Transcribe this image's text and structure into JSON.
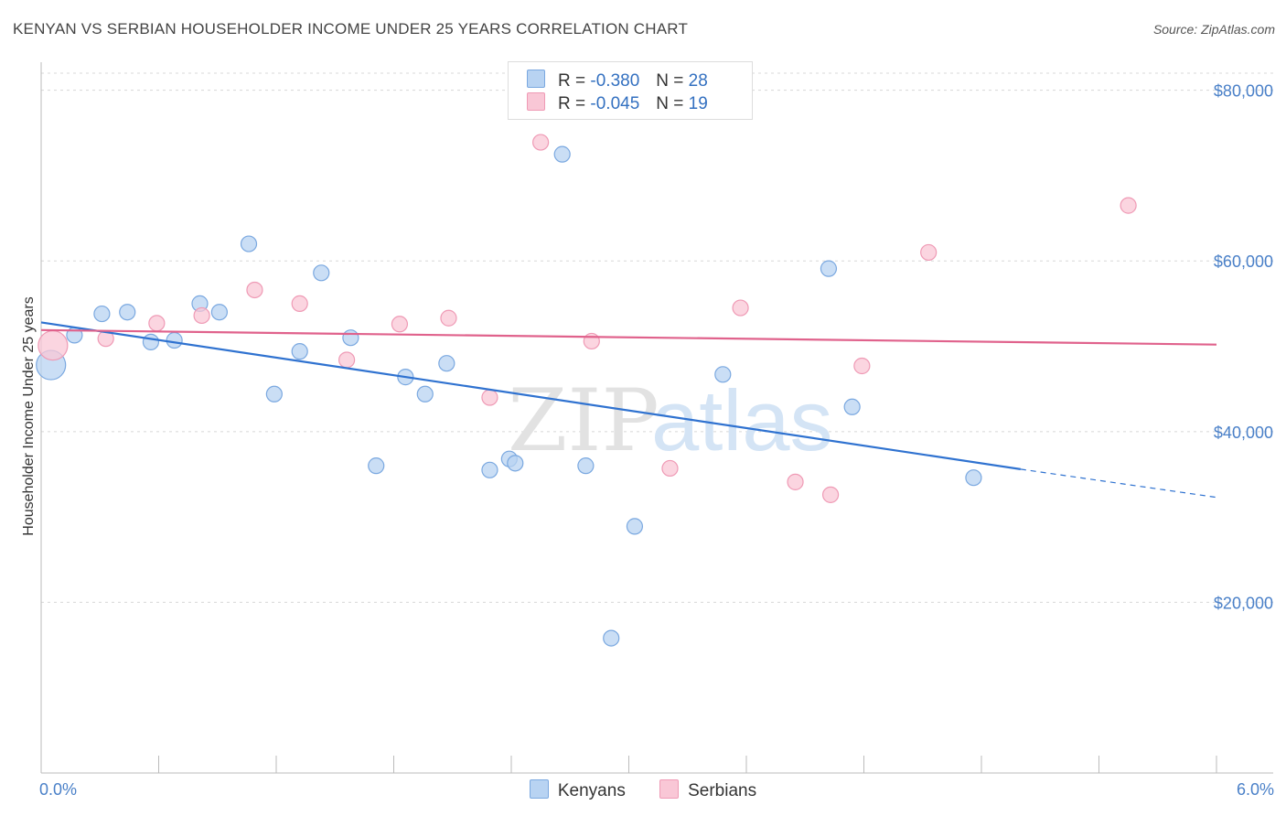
{
  "title": "KENYAN VS SERBIAN HOUSEHOLDER INCOME UNDER 25 YEARS CORRELATION CHART",
  "source": "Source: ZipAtlas.com",
  "watermark": {
    "zip": "ZIP",
    "atlas": "atlas"
  },
  "legend": {
    "kenyans": {
      "r_label": "R =",
      "r_value": "-0.380",
      "n_label": "N =",
      "n_value": "28"
    },
    "serbians": {
      "r_label": "R =",
      "r_value": "-0.045",
      "n_label": "N =",
      "n_value": "19"
    }
  },
  "colors": {
    "kenyans_fill": "#b8d3f2",
    "kenyans_stroke": "#7aa8e0",
    "kenyans_line": "#2f72d0",
    "serbians_fill": "#f9c7d6",
    "serbians_stroke": "#ef9ab5",
    "serbians_line": "#e0628c",
    "tick_text": "#4a80c8",
    "grid": "#d8d8d8"
  },
  "chart_data": {
    "type": "scatter",
    "title": "KENYAN VS SERBIAN HOUSEHOLDER INCOME UNDER 25 YEARS CORRELATION CHART",
    "xlabel": "",
    "ylabel": "Householder Income Under 25 years",
    "xlim": [
      0,
      6
    ],
    "ylim": [
      0,
      82000
    ],
    "x_tick_labels": [
      "0.0%",
      "6.0%"
    ],
    "y_ticks": [
      20000,
      40000,
      60000,
      80000
    ],
    "y_tick_labels": [
      "$20,000",
      "$40,000",
      "$60,000",
      "$80,000"
    ],
    "grid": true,
    "legend_position": "top-center",
    "series": [
      {
        "name": "Kenyans",
        "points": [
          {
            "x": 0.05,
            "y": 47800,
            "big": true
          },
          {
            "x": 0.17,
            "y": 51300
          },
          {
            "x": 0.31,
            "y": 53800
          },
          {
            "x": 0.44,
            "y": 54000
          },
          {
            "x": 0.56,
            "y": 50500
          },
          {
            "x": 0.68,
            "y": 50700
          },
          {
            "x": 0.81,
            "y": 55000
          },
          {
            "x": 0.91,
            "y": 54000
          },
          {
            "x": 1.06,
            "y": 62000
          },
          {
            "x": 1.19,
            "y": 44400
          },
          {
            "x": 1.32,
            "y": 49400
          },
          {
            "x": 1.43,
            "y": 58600
          },
          {
            "x": 1.58,
            "y": 51000
          },
          {
            "x": 1.71,
            "y": 36000
          },
          {
            "x": 1.86,
            "y": 46400
          },
          {
            "x": 1.96,
            "y": 44400
          },
          {
            "x": 2.07,
            "y": 48000
          },
          {
            "x": 2.29,
            "y": 35500
          },
          {
            "x": 2.39,
            "y": 36800
          },
          {
            "x": 2.42,
            "y": 36300
          },
          {
            "x": 2.66,
            "y": 72500
          },
          {
            "x": 2.78,
            "y": 36000
          },
          {
            "x": 2.91,
            "y": 15800
          },
          {
            "x": 3.03,
            "y": 28900
          },
          {
            "x": 3.48,
            "y": 46700
          },
          {
            "x": 4.02,
            "y": 59100
          },
          {
            "x": 4.14,
            "y": 42900
          },
          {
            "x": 4.76,
            "y": 34600
          }
        ],
        "trend": {
          "x0": 0,
          "y0": 52800,
          "x1": 5.0,
          "y1": 35600,
          "dash_x1": 6.0,
          "dash_y1": 32300
        }
      },
      {
        "name": "Serbians",
        "points": [
          {
            "x": 0.06,
            "y": 50100,
            "big": true
          },
          {
            "x": 0.33,
            "y": 50900
          },
          {
            "x": 0.59,
            "y": 52700
          },
          {
            "x": 0.82,
            "y": 53600
          },
          {
            "x": 1.09,
            "y": 56600
          },
          {
            "x": 1.32,
            "y": 55000
          },
          {
            "x": 1.56,
            "y": 48400
          },
          {
            "x": 1.83,
            "y": 52600
          },
          {
            "x": 2.08,
            "y": 53300
          },
          {
            "x": 2.29,
            "y": 44000
          },
          {
            "x": 2.55,
            "y": 73900
          },
          {
            "x": 2.81,
            "y": 50600
          },
          {
            "x": 3.21,
            "y": 35700
          },
          {
            "x": 3.57,
            "y": 54500
          },
          {
            "x": 3.85,
            "y": 34100
          },
          {
            "x": 4.03,
            "y": 32600
          },
          {
            "x": 4.19,
            "y": 47700
          },
          {
            "x": 4.53,
            "y": 61000
          },
          {
            "x": 5.55,
            "y": 66500
          }
        ],
        "trend": {
          "x0": 0,
          "y0": 51900,
          "x1": 6.0,
          "y1": 50200
        }
      }
    ]
  },
  "bottom_legend": [
    "Kenyans",
    "Serbians"
  ]
}
